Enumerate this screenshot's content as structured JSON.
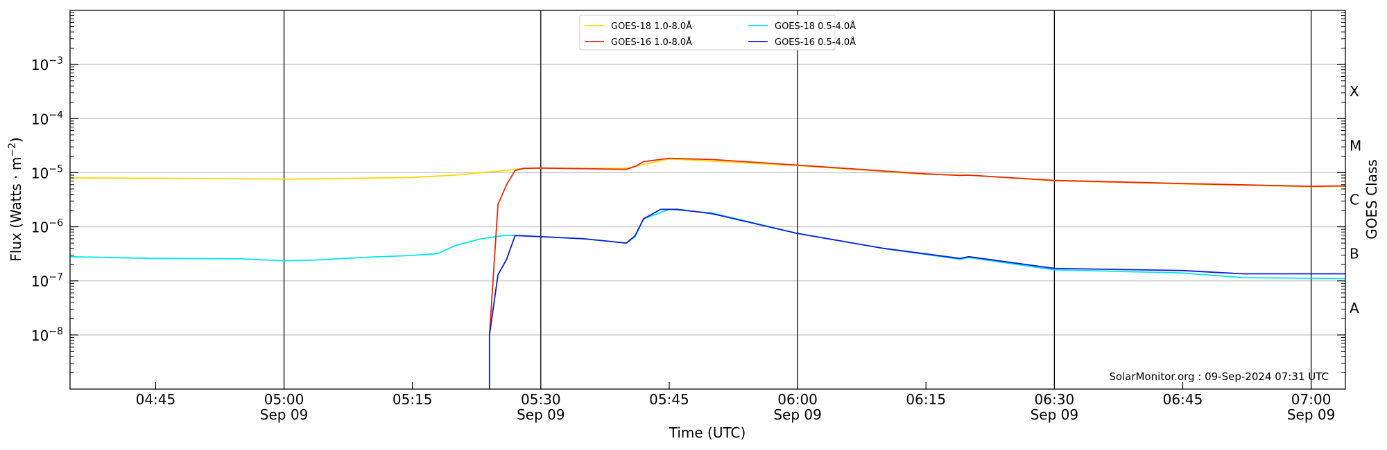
{
  "chart_data": {
    "type": "line",
    "xlabel": "Time (UTC)",
    "ylabel": "Flux (Watts · m",
    "ylabel_sup": "−2",
    "ylabel_close": ")",
    "ylabel_right": "GOES Class",
    "credit": "SolarMonitor.org : 09-Sep-2024 07:31 UTC",
    "xlim": [
      "04:35",
      "07:04"
    ],
    "ylim": [
      1e-09,
      0.01
    ],
    "yscale": "log",
    "grid": "horizontal",
    "legend_placement": "top-center",
    "x_ticks": [
      {
        "time": "04:45",
        "label": "04:45",
        "date": ""
      },
      {
        "time": "05:00",
        "label": "05:00",
        "date": "Sep 09"
      },
      {
        "time": "05:15",
        "label": "05:15",
        "date": ""
      },
      {
        "time": "05:30",
        "label": "05:30",
        "date": "Sep 09"
      },
      {
        "time": "05:45",
        "label": "05:45",
        "date": ""
      },
      {
        "time": "06:00",
        "label": "06:00",
        "date": "Sep 09"
      },
      {
        "time": "06:15",
        "label": "06:15",
        "date": ""
      },
      {
        "time": "06:30",
        "label": "06:30",
        "date": "Sep 09"
      },
      {
        "time": "06:45",
        "label": "06:45",
        "date": ""
      },
      {
        "time": "07:00",
        "label": "07:00",
        "date": "Sep 09"
      }
    ],
    "y_ticks": [
      {
        "exp": -3,
        "base": "10",
        "sup": "−3"
      },
      {
        "exp": -4,
        "base": "10",
        "sup": "−4"
      },
      {
        "exp": -5,
        "base": "10",
        "sup": "−5"
      },
      {
        "exp": -6,
        "base": "10",
        "sup": "−6"
      },
      {
        "exp": -7,
        "base": "10",
        "sup": "−7"
      },
      {
        "exp": -8,
        "base": "10",
        "sup": "−8"
      }
    ],
    "goes_classes": [
      {
        "label": "X",
        "exp": -3.5
      },
      {
        "label": "M",
        "exp": -4.5
      },
      {
        "label": "C",
        "exp": -5.5
      },
      {
        "label": "B",
        "exp": -6.5
      },
      {
        "label": "A",
        "exp": -7.5
      }
    ],
    "series": [
      {
        "name": "GOES-18 1.0-8.0Å",
        "color": "#ffd700",
        "points": [
          [
            "04:35",
            8e-06
          ],
          [
            "04:45",
            7.9e-06
          ],
          [
            "05:00",
            7.6e-06
          ],
          [
            "05:05",
            7.7e-06
          ],
          [
            "05:15",
            8.2e-06
          ],
          [
            "05:20",
            9e-06
          ],
          [
            "05:23",
            1e-05
          ],
          [
            "05:26",
            1.1e-05
          ],
          [
            "05:28",
            1.2e-05
          ],
          [
            "05:30",
            1.2e-05
          ],
          [
            "05:40",
            1.2e-05
          ],
          [
            "05:45",
            1.8e-05
          ],
          [
            "06:00",
            1.35e-05
          ],
          [
            "06:15",
            9.3e-06
          ],
          [
            "06:20",
            9e-06
          ],
          [
            "06:30",
            7.1e-06
          ],
          [
            "06:45",
            6.2e-06
          ],
          [
            "07:00",
            5.5e-06
          ],
          [
            "07:04",
            5.6e-06
          ]
        ]
      },
      {
        "name": "GOES-18 0.5-4.0Å",
        "color": "#00e5ee",
        "points": [
          [
            "04:35",
            2.8e-07
          ],
          [
            "04:45",
            2.6e-07
          ],
          [
            "04:55",
            2.55e-07
          ],
          [
            "05:00",
            2.35e-07
          ],
          [
            "05:03",
            2.4e-07
          ],
          [
            "05:10",
            2.75e-07
          ],
          [
            "05:15",
            2.95e-07
          ],
          [
            "05:18",
            3.2e-07
          ],
          [
            "05:20",
            4.5e-07
          ],
          [
            "05:23",
            6e-07
          ],
          [
            "05:26",
            7e-07
          ],
          [
            "05:28",
            6.8e-07
          ],
          [
            "05:35",
            6e-07
          ],
          [
            "05:40",
            5e-07
          ],
          [
            "05:41",
            6.5e-07
          ],
          [
            "05:42",
            1.4e-06
          ],
          [
            "05:45",
            2.1e-06
          ],
          [
            "05:50",
            1.8e-06
          ],
          [
            "06:00",
            7.5e-07
          ],
          [
            "06:10",
            4e-07
          ],
          [
            "06:19",
            2.5e-07
          ],
          [
            "06:20",
            2.7e-07
          ],
          [
            "06:30",
            1.6e-07
          ],
          [
            "06:45",
            1.4e-07
          ],
          [
            "06:52",
            1.15e-07
          ],
          [
            "07:04",
            1.1e-07
          ]
        ]
      },
      {
        "name": "GOES-16 1.0-8.0Å",
        "color": "#e8240c",
        "points": [
          [
            "05:24",
            1e-08
          ],
          [
            "05:25",
            2.6e-06
          ],
          [
            "05:26",
            6e-06
          ],
          [
            "05:27",
            1.1e-05
          ],
          [
            "05:28",
            1.2e-05
          ],
          [
            "05:30",
            1.22e-05
          ],
          [
            "05:40",
            1.15e-05
          ],
          [
            "05:41",
            1.3e-05
          ],
          [
            "05:42",
            1.6e-05
          ],
          [
            "05:45",
            1.85e-05
          ],
          [
            "05:50",
            1.75e-05
          ],
          [
            "06:00",
            1.38e-05
          ],
          [
            "06:15",
            9.5e-06
          ],
          [
            "06:19",
            8.9e-06
          ],
          [
            "06:20",
            9e-06
          ],
          [
            "06:30",
            7.2e-06
          ],
          [
            "06:45",
            6.3e-06
          ],
          [
            "07:00",
            5.6e-06
          ],
          [
            "07:04",
            5.7e-06
          ]
        ]
      },
      {
        "name": "GOES-16 0.5-4.0Å",
        "color": "#0b1bd6",
        "points": [
          [
            "05:24",
            1e-09
          ],
          [
            "05:24",
            1e-08
          ],
          [
            "05:25",
            1.3e-07
          ],
          [
            "05:26",
            2.5e-07
          ],
          [
            "05:27",
            6.9e-07
          ],
          [
            "05:28",
            6.8e-07
          ],
          [
            "05:35",
            6e-07
          ],
          [
            "05:40",
            5e-07
          ],
          [
            "05:41",
            6.8e-07
          ],
          [
            "05:42",
            1.4e-06
          ],
          [
            "05:44",
            2.1e-06
          ],
          [
            "05:46",
            2.1e-06
          ],
          [
            "05:50",
            1.75e-06
          ],
          [
            "06:00",
            7.5e-07
          ],
          [
            "06:10",
            4e-07
          ],
          [
            "06:19",
            2.6e-07
          ],
          [
            "06:20",
            2.8e-07
          ],
          [
            "06:30",
            1.7e-07
          ],
          [
            "06:45",
            1.55e-07
          ],
          [
            "06:52",
            1.35e-07
          ],
          [
            "07:04",
            1.35e-07
          ]
        ]
      }
    ]
  }
}
